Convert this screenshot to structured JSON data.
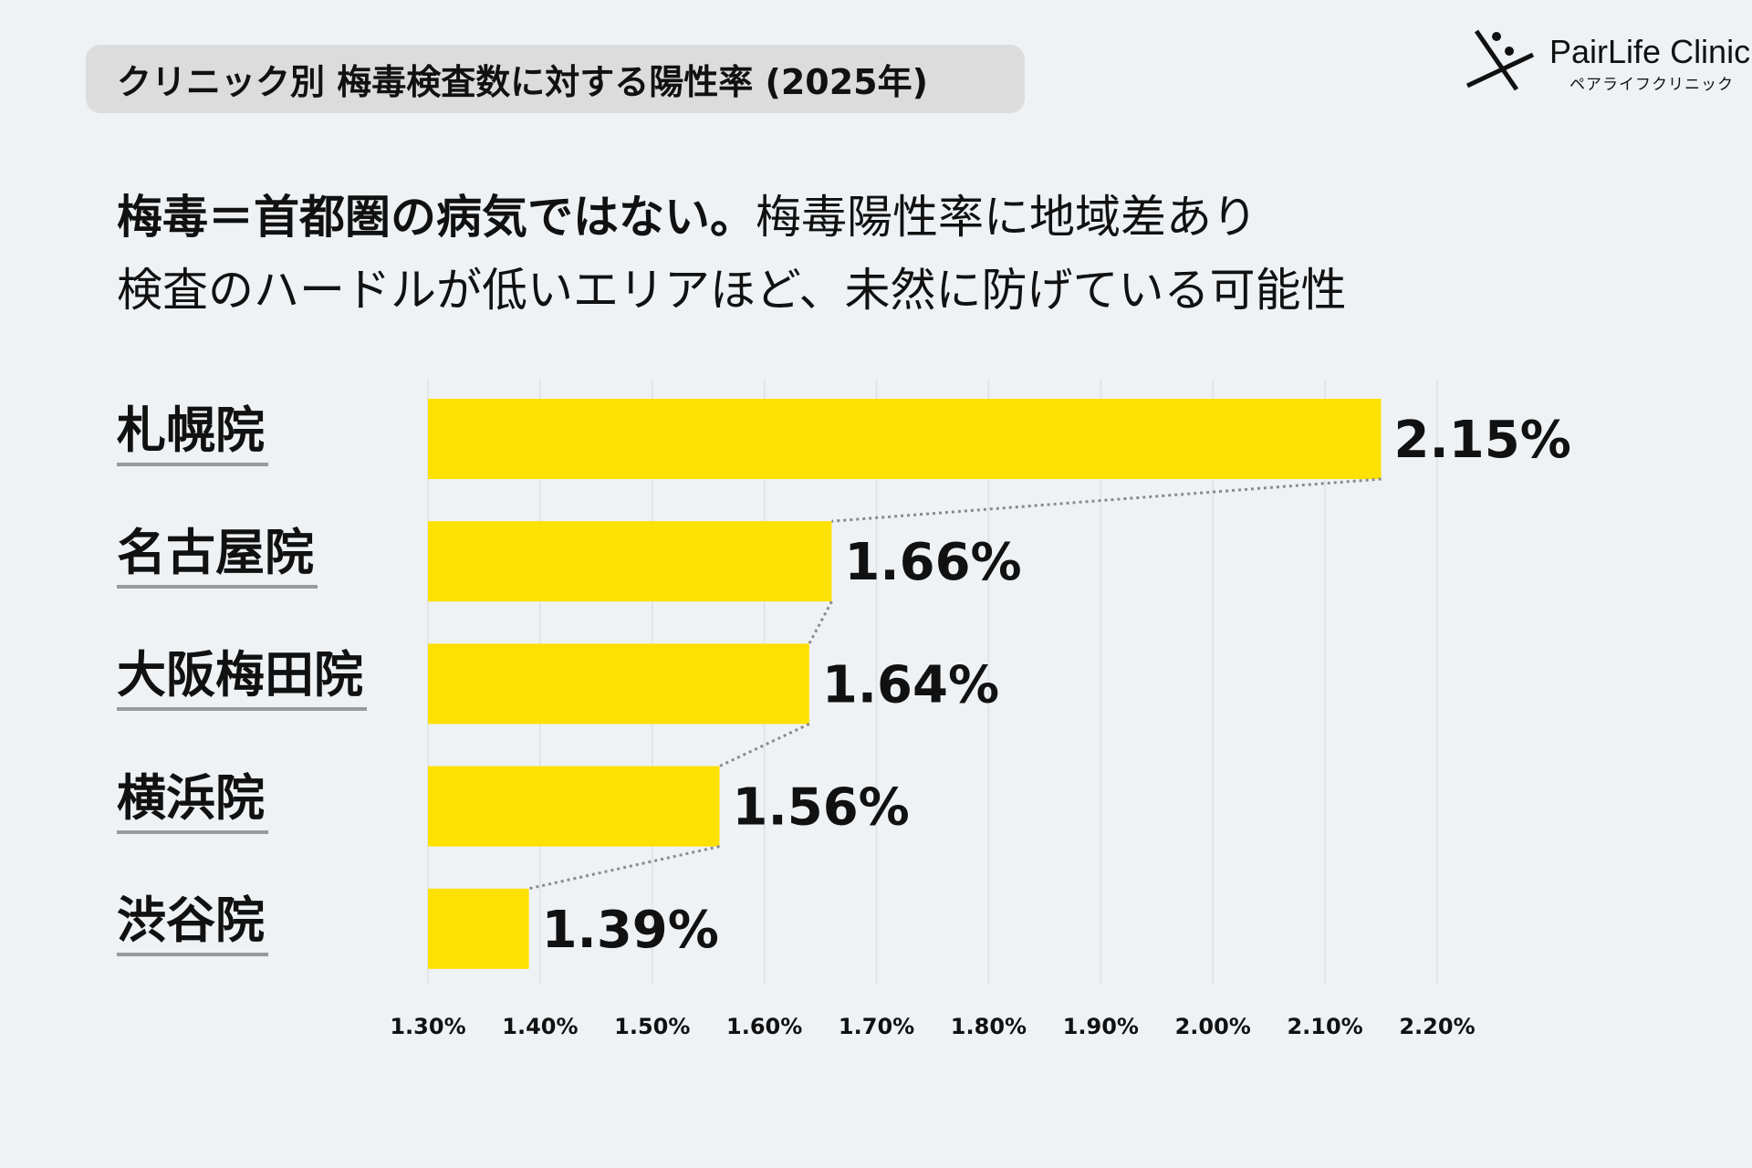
{
  "header": {
    "title": "クリニック別 梅毒検査数に対する陽性率 (2025年)",
    "logo_name": "PairLife Clinic",
    "logo_sub": "ペアライフクリニック",
    "headline_bold": "梅毒＝首都圏の病気ではない。",
    "headline_regular": "梅毒陽性率に地域差あり",
    "headline_line2": "検査のハードルが低いエリアほど、未然に防げている可能性"
  },
  "chart_data": {
    "type": "bar",
    "orientation": "horizontal",
    "categories": [
      "札幌院",
      "名古屋院",
      "大阪梅田院",
      "横浜院",
      "渋谷院"
    ],
    "values": [
      2.15,
      1.66,
      1.64,
      1.56,
      1.39
    ],
    "value_labels": [
      "2.15%",
      "1.66%",
      "1.64%",
      "1.56%",
      "1.39%"
    ],
    "xlim": [
      1.3,
      2.2
    ],
    "x_ticks": [
      "1.30%",
      "1.40%",
      "1.50%",
      "1.60%",
      "1.70%",
      "1.80%",
      "1.90%",
      "2.00%",
      "2.10%",
      "2.20%"
    ],
    "grid": "vertical",
    "bar_color": "#fde100",
    "connector": "dotted"
  }
}
